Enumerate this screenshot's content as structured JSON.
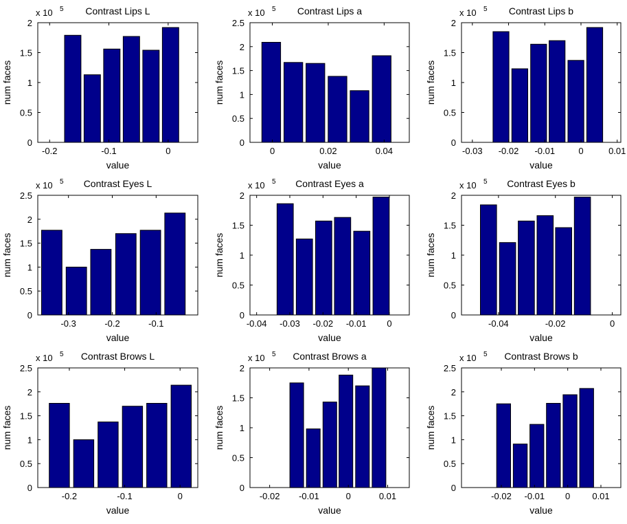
{
  "figure": {
    "xlabel": "value",
    "ylabel": "num faces",
    "exponent_base": "x 10",
    "exponent_power": "5",
    "bar_color": "#00008B",
    "bar_edge_color": "#000000"
  },
  "chart_data": [
    {
      "type": "bar",
      "title": "Contrast Lips L",
      "xlabel": "value",
      "ylabel": "num faces",
      "xlim": [
        -0.22,
        0.05
      ],
      "ylim": [
        0,
        2
      ],
      "xticks": [
        -0.2,
        -0.1,
        0
      ],
      "xtick_labels": [
        "-0.2",
        "-0.1",
        "0"
      ],
      "yticks": [
        0,
        0.5,
        1,
        1.5,
        2
      ],
      "ytick_labels": [
        "0",
        "0.5",
        "1",
        "1.5",
        "2"
      ],
      "y_multiplier": "x 10^5",
      "bin_centers": [
        -0.161,
        -0.128,
        -0.095,
        -0.062,
        -0.029,
        0.004
      ],
      "bar_width": 0.0277,
      "values": [
        1.79,
        1.13,
        1.56,
        1.77,
        1.54,
        1.92
      ]
    },
    {
      "type": "bar",
      "title": "Contrast Lips a",
      "xlabel": "value",
      "ylabel": "num faces",
      "xlim": [
        -0.008,
        0.049
      ],
      "ylim": [
        0,
        2.5
      ],
      "xticks": [
        0,
        0.02,
        0.04
      ],
      "xtick_labels": [
        "0",
        "0.02",
        "0.04"
      ],
      "yticks": [
        0,
        0.5,
        1,
        1.5,
        2,
        2.5
      ],
      "ytick_labels": [
        "0",
        "0.5",
        "1",
        "1.5",
        "2",
        "2.5"
      ],
      "y_multiplier": "x 10^5",
      "bin_centers": [
        -0.0004,
        0.0075,
        0.0154,
        0.0233,
        0.0312,
        0.0391
      ],
      "bar_width": 0.0067,
      "values": [
        2.09,
        1.67,
        1.65,
        1.38,
        1.08,
        1.81
      ]
    },
    {
      "type": "bar",
      "title": "Contrast Lips b",
      "xlabel": "value",
      "ylabel": "num faces",
      "xlim": [
        -0.033,
        0.011
      ],
      "ylim": [
        0,
        2
      ],
      "xticks": [
        -0.03,
        -0.02,
        -0.01,
        0,
        0.01
      ],
      "xtick_labels": [
        "-0.03",
        "-0.02",
        "-0.01",
        "0",
        "0.01"
      ],
      "yticks": [
        0,
        0.5,
        1,
        1.5,
        2
      ],
      "ytick_labels": [
        "0",
        "0.5",
        "1",
        "1.5",
        "2"
      ],
      "y_multiplier": "x 10^5",
      "bin_centers": [
        -0.0221,
        -0.0169,
        -0.0117,
        -0.0066,
        -0.0014,
        0.0038
      ],
      "bar_width": 0.0044,
      "values": [
        1.85,
        1.23,
        1.64,
        1.7,
        1.37,
        1.92
      ]
    },
    {
      "type": "bar",
      "title": "Contrast Eyes L",
      "xlabel": "value",
      "ylabel": "num faces",
      "xlim": [
        -0.37,
        -0.005
      ],
      "ylim": [
        0,
        2.5
      ],
      "xticks": [
        -0.3,
        -0.2,
        -0.1
      ],
      "xtick_labels": [
        "-0.3",
        "-0.2",
        "-0.1"
      ],
      "yticks": [
        0,
        0.5,
        1,
        1.5,
        2,
        2.5
      ],
      "ytick_labels": [
        "0",
        "0.5",
        "1",
        "1.5",
        "2",
        "2.5"
      ],
      "y_multiplier": "x 10^5",
      "bin_centers": [
        -0.338,
        -0.282,
        -0.226,
        -0.169,
        -0.113,
        -0.057
      ],
      "bar_width": 0.0467,
      "values": [
        1.77,
        1.0,
        1.37,
        1.7,
        1.77,
        2.13
      ]
    },
    {
      "type": "bar",
      "title": "Contrast Eyes a",
      "xlabel": "value",
      "ylabel": "num faces",
      "xlim": [
        -0.042,
        0.006
      ],
      "ylim": [
        0,
        2
      ],
      "xticks": [
        -0.04,
        -0.03,
        -0.02,
        -0.01,
        0
      ],
      "xtick_labels": [
        "-0.04",
        "-0.03",
        "-0.02",
        "-0.01",
        "0"
      ],
      "yticks": [
        0,
        0.5,
        1,
        1.5,
        2
      ],
      "ytick_labels": [
        "0",
        "0.5",
        "1",
        "1.5",
        "2"
      ],
      "y_multiplier": "x 10^5",
      "bin_centers": [
        -0.0314,
        -0.0256,
        -0.0198,
        -0.0141,
        -0.0083,
        -0.0025
      ],
      "bar_width": 0.0049,
      "values": [
        1.86,
        1.27,
        1.57,
        1.63,
        1.4,
        1.97
      ]
    },
    {
      "type": "bar",
      "title": "Contrast Eyes b",
      "xlabel": "value",
      "ylabel": "num faces",
      "xlim": [
        -0.053,
        0.003
      ],
      "ylim": [
        0,
        2
      ],
      "xticks": [
        -0.04,
        -0.02,
        0
      ],
      "xtick_labels": [
        "-0.04",
        "-0.02",
        "0"
      ],
      "yticks": [
        0,
        0.5,
        1,
        1.5,
        2
      ],
      "ytick_labels": [
        "0",
        "0.5",
        "1",
        "1.5",
        "2"
      ],
      "y_multiplier": "x 10^5",
      "bin_centers": [
        -0.0435,
        -0.0368,
        -0.0302,
        -0.0236,
        -0.0171,
        -0.0105
      ],
      "bar_width": 0.0057,
      "values": [
        1.84,
        1.21,
        1.57,
        1.66,
        1.46,
        1.97
      ]
    },
    {
      "type": "bar",
      "title": "Contrast Brows L",
      "xlabel": "value",
      "ylabel": "num faces",
      "xlim": [
        -0.257,
        0.032
      ],
      "ylim": [
        0,
        2.5
      ],
      "xticks": [
        -0.2,
        -0.1,
        0
      ],
      "xtick_labels": [
        "-0.2",
        "-0.1",
        "0"
      ],
      "yticks": [
        0,
        0.5,
        1,
        1.5,
        2,
        2.5
      ],
      "ytick_labels": [
        "0",
        "0.5",
        "1",
        "1.5",
        "2",
        "2.5"
      ],
      "y_multiplier": "x 10^5",
      "bin_centers": [
        -0.218,
        -0.174,
        -0.13,
        -0.086,
        -0.042,
        0.002
      ],
      "bar_width": 0.0365,
      "values": [
        1.76,
        1.0,
        1.37,
        1.7,
        1.76,
        2.14
      ]
    },
    {
      "type": "bar",
      "title": "Contrast Brows a",
      "xlabel": "value",
      "ylabel": "num faces",
      "xlim": [
        -0.025,
        0.0155
      ],
      "ylim": [
        0,
        2
      ],
      "xticks": [
        -0.02,
        -0.01,
        0,
        0.01
      ],
      "xtick_labels": [
        "-0.02",
        "-0.01",
        "0",
        "0.01"
      ],
      "yticks": [
        0,
        0.5,
        1,
        1.5,
        2
      ],
      "ytick_labels": [
        "0",
        "0.5",
        "1",
        "1.5",
        "2"
      ],
      "y_multiplier": "x 10^5",
      "bin_centers": [
        -0.0131,
        -0.0089,
        -0.0047,
        -0.0006,
        0.0036,
        0.0078
      ],
      "bar_width": 0.0035,
      "values": [
        1.75,
        0.98,
        1.43,
        1.88,
        1.7,
        2.0
      ]
    },
    {
      "type": "bar",
      "title": "Contrast Brows b",
      "xlabel": "value",
      "ylabel": "num faces",
      "xlim": [
        -0.032,
        0.016
      ],
      "ylim": [
        0,
        2.5
      ],
      "xticks": [
        -0.02,
        -0.01,
        0,
        0.01
      ],
      "xtick_labels": [
        "-0.02",
        "-0.01",
        "0",
        "0.01"
      ],
      "yticks": [
        0,
        0.5,
        1,
        1.5,
        2,
        2.5
      ],
      "ytick_labels": [
        "0",
        "0.5",
        "1",
        "1.5",
        "2",
        "2.5"
      ],
      "y_multiplier": "x 10^5",
      "bin_centers": [
        -0.0193,
        -0.0143,
        -0.0093,
        -0.0043,
        0.0007,
        0.0057
      ],
      "bar_width": 0.0042,
      "values": [
        1.75,
        0.91,
        1.32,
        1.76,
        1.94,
        2.07
      ]
    }
  ]
}
